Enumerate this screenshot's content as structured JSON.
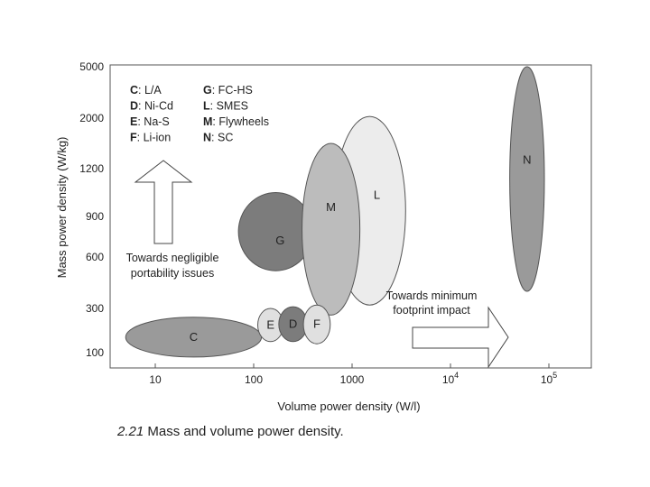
{
  "chart_data": {
    "type": "bubble-region",
    "title": "",
    "xlabel": "Volume power density (W/l)",
    "ylabel": "Mass power density (W/kg)",
    "x_ticks": [
      {
        "label": "10",
        "sup": ""
      },
      {
        "label": "100",
        "sup": ""
      },
      {
        "label": "1000",
        "sup": ""
      },
      {
        "label": "10",
        "sup": "4"
      },
      {
        "label": "10",
        "sup": "5"
      }
    ],
    "y_ticks": [
      "5000",
      "2000",
      "1200",
      "900",
      "600",
      "300",
      "100"
    ],
    "x_scale": "log",
    "legend": {
      "placement": "top-left",
      "entries": [
        {
          "key": "C",
          "text": ": L/A"
        },
        {
          "key": "D",
          "text": ": Ni-Cd"
        },
        {
          "key": "E",
          "text": ": Na-S"
        },
        {
          "key": "F",
          "text": ": Li-ion"
        },
        {
          "key": "G",
          "text": ": FC-HS"
        },
        {
          "key": "L",
          "text": ": SMES"
        },
        {
          "key": "M",
          "text": ": Flywheels"
        },
        {
          "key": "N",
          "text": ": SC"
        }
      ]
    },
    "regions": [
      {
        "label": "C",
        "x_range": [
          5,
          120
        ],
        "y_range": [
          80,
          260
        ],
        "fill": "#9a9a9a"
      },
      {
        "label": "G",
        "x_range": [
          70,
          400
        ],
        "y_range": [
          520,
          1050
        ],
        "fill": "#7c7c7c"
      },
      {
        "label": "L",
        "x_range": [
          650,
          3500
        ],
        "y_range": [
          320,
          2100
        ],
        "fill": "#ececec"
      },
      {
        "label": "M",
        "x_range": [
          310,
          1200
        ],
        "y_range": [
          270,
          1600
        ],
        "fill": "#bcbcbc"
      },
      {
        "label": "E",
        "x_range": [
          110,
          200
        ],
        "y_range": [
          150,
          300
        ],
        "fill": "#e0e0e0"
      },
      {
        "label": "D",
        "x_range": [
          180,
          350
        ],
        "y_range": [
          150,
          310
        ],
        "fill": "#7c7c7c"
      },
      {
        "label": "F",
        "x_range": [
          320,
          600
        ],
        "y_range": [
          140,
          320
        ],
        "fill": "#e0e0e0"
      },
      {
        "label": "N",
        "x_range": [
          40000,
          90000
        ],
        "y_range": [
          400,
          5000
        ],
        "fill": "#9a9a9a"
      }
    ],
    "annotations": [
      {
        "text_lines": [
          "Towards negligible",
          "portability issues"
        ],
        "arrow": "up"
      },
      {
        "text_lines": [
          "Towards minimum",
          "footprint impact"
        ],
        "arrow": "right"
      }
    ]
  },
  "caption": {
    "number": "2.21",
    "text": " Mass and volume power density."
  }
}
